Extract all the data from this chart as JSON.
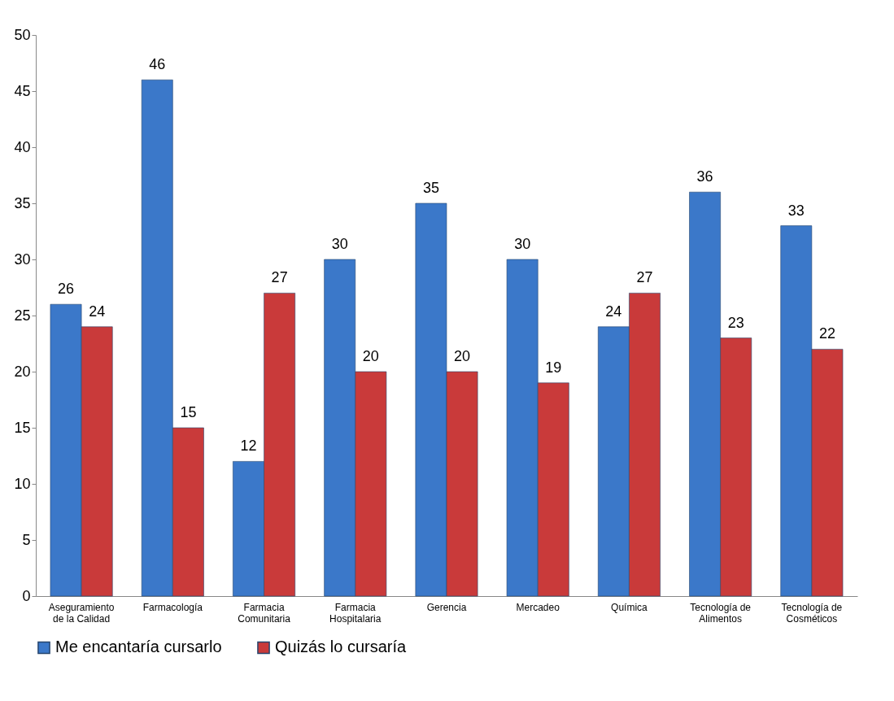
{
  "chart_data": {
    "type": "bar",
    "categories": [
      "Aseguramiento de la Calidad",
      "Farmacología",
      "Farmacia Comunitaria",
      "Farmacia Hospitalaria",
      "Gerencia",
      "Mercadeo",
      "Química",
      "Tecnología de Alimentos",
      "Tecnología de Cosméticos"
    ],
    "series": [
      {
        "name": "Me encantaría cursarlo",
        "color": "#3b78c9",
        "values": [
          26,
          46,
          12,
          30,
          35,
          30,
          24,
          36,
          33
        ]
      },
      {
        "name": "Quizás lo cursaría",
        "color": "#c93a3a",
        "values": [
          24,
          15,
          27,
          20,
          20,
          19,
          27,
          23,
          22
        ]
      }
    ],
    "ylim": [
      0,
      50
    ],
    "yticks": [
      0,
      5,
      10,
      15,
      20,
      25,
      30,
      35,
      40,
      45,
      50
    ],
    "grid": false,
    "legend": "bottom",
    "data_labels": true
  }
}
